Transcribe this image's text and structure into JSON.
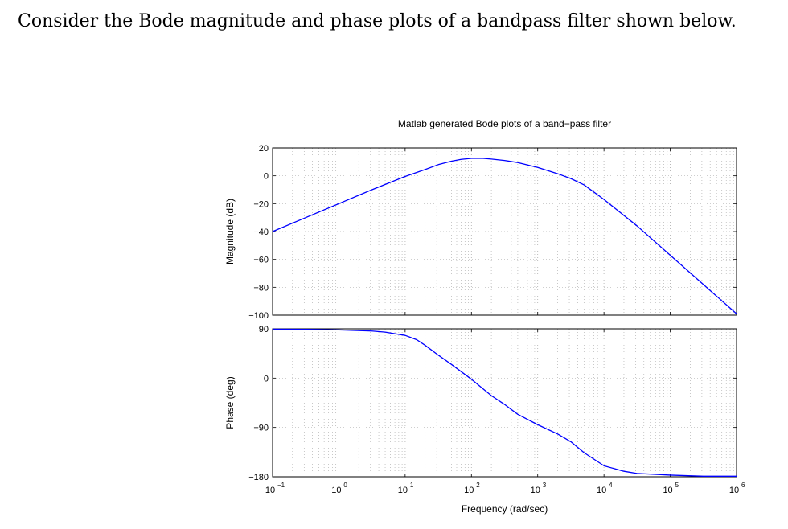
{
  "intro_text": "Consider the Bode magnitude and phase plots of a bandpass filter shown below.",
  "chart_data": [
    {
      "type": "line",
      "panel": "magnitude",
      "title": "Matlab generated Bode plots of a band−pass filter",
      "ylabel": "Magnitude (dB)",
      "xlabel": "",
      "xscale": "log",
      "xlim": [
        0.1,
        1000000
      ],
      "ylim": [
        -100,
        20
      ],
      "yticks": [
        20,
        0,
        -20,
        -40,
        -60,
        -80,
        -100
      ],
      "ytick_labels": [
        "20",
        "0",
        "−20",
        "−40",
        "−60",
        "−80",
        "−100"
      ],
      "grid": true,
      "series": [
        {
          "color": "#0000ff",
          "x": [
            0.1,
            0.316,
            1,
            3.16,
            10,
            20,
            31.6,
            50,
            70,
            100,
            150,
            200,
            316,
            500,
            1000,
            2000,
            3160,
            5000,
            10000,
            31600,
            100000,
            316000,
            1000000
          ],
          "y": [
            -40,
            -30,
            -20,
            -10,
            -0.5,
            4.5,
            8,
            10.5,
            11.8,
            12.5,
            12.5,
            12,
            11,
            9.5,
            6,
            1.5,
            -2,
            -6.5,
            -17,
            -36,
            -57,
            -78,
            -99
          ]
        }
      ]
    },
    {
      "type": "line",
      "panel": "phase",
      "title": "",
      "ylabel": "Phase (deg)",
      "xlabel": "Frequency  (rad/sec)",
      "xscale": "log",
      "xlim": [
        0.1,
        1000000
      ],
      "ylim": [
        -180,
        90
      ],
      "yticks": [
        90,
        0,
        -90,
        -180
      ],
      "ytick_labels": [
        "90",
        "0",
        "−90",
        "−180"
      ],
      "xticks": [
        0.1,
        1,
        10,
        100,
        1000,
        10000,
        100000,
        1000000
      ],
      "xtick_bases": [
        "10",
        "10",
        "10",
        "10",
        "10",
        "10",
        "10",
        "10"
      ],
      "xtick_exponents": [
        "−1",
        "0",
        "1",
        "2",
        "3",
        "4",
        "5",
        "6"
      ],
      "grid": true,
      "series": [
        {
          "color": "#0000ff",
          "x": [
            0.1,
            0.316,
            1,
            3.16,
            5,
            10,
            15,
            20,
            31.6,
            50,
            100,
            200,
            316,
            500,
            1000,
            2000,
            3160,
            5000,
            10000,
            20000,
            31600,
            100000,
            316000,
            1000000
          ],
          "y": [
            89.5,
            89,
            88,
            86,
            84,
            78,
            70,
            60,
            42,
            25,
            -2,
            -32,
            -48,
            -66,
            -85,
            -102,
            -116,
            -136,
            -160,
            -170,
            -174,
            -177,
            -179,
            -179
          ]
        }
      ]
    }
  ]
}
